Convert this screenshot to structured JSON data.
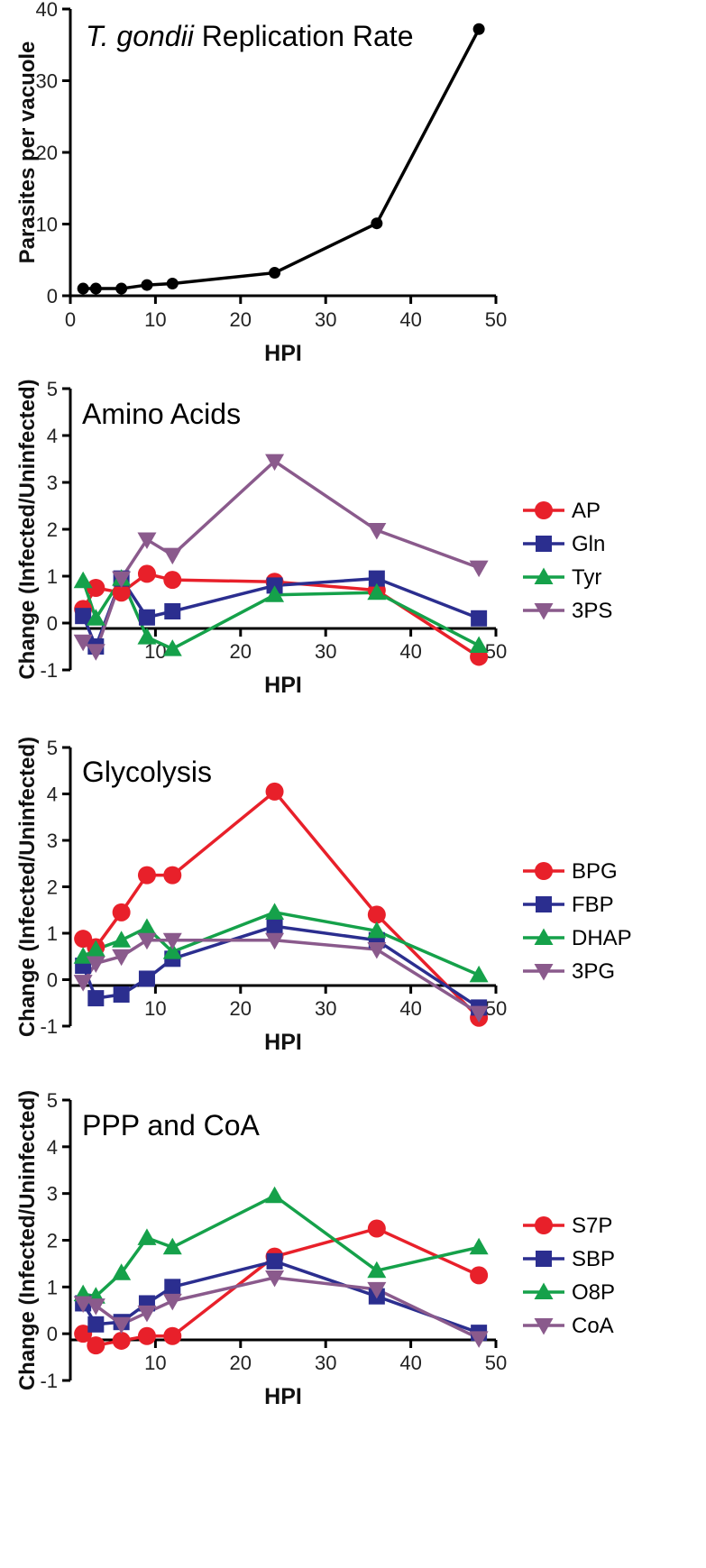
{
  "chart_data": [
    {
      "type": "line",
      "title_italic": "T. gondii",
      "title_rest": " Replication Rate",
      "xlabel": "HPI",
      "ylabel": "Parasites per vacuole",
      "xlim": [
        0,
        50
      ],
      "ylim": [
        0,
        40
      ],
      "xticks": [
        0,
        10,
        20,
        30,
        40,
        50
      ],
      "yticks": [
        0,
        10,
        20,
        30,
        40
      ],
      "series": [
        {
          "name": "Parasites",
          "color": "#000000",
          "marker": "circle",
          "x": [
            1.5,
            3,
            6,
            9,
            12,
            24,
            36,
            48
          ],
          "y": [
            1,
            1,
            1,
            1.5,
            1.7,
            3.2,
            10.1,
            37.2
          ]
        }
      ]
    },
    {
      "type": "line",
      "title": "Amino Acids",
      "xlabel": "HPI",
      "ylabel": "Change (Infected/Uninfected)",
      "xlim": [
        0,
        50
      ],
      "ylim": [
        -1,
        5
      ],
      "xticks": [
        10,
        20,
        30,
        40,
        50
      ],
      "yticks": [
        -1,
        0,
        1,
        2,
        3,
        4,
        5
      ],
      "series": [
        {
          "name": "AP",
          "color": "#e8202a",
          "marker": "circle",
          "x": [
            1.5,
            3,
            6,
            9,
            12,
            24,
            36,
            48
          ],
          "y": [
            0.3,
            0.75,
            0.65,
            1.05,
            0.92,
            0.88,
            0.7,
            -0.72
          ]
        },
        {
          "name": "Gln",
          "color": "#2b2e8f",
          "marker": "square",
          "x": [
            1.5,
            3,
            6,
            9,
            12,
            24,
            36,
            48
          ],
          "y": [
            0.15,
            -0.5,
            0.95,
            0.12,
            0.25,
            0.8,
            0.95,
            0.1
          ]
        },
        {
          "name": "Tyr",
          "color": "#15a14a",
          "marker": "triangle-up",
          "x": [
            1.5,
            3,
            6,
            9,
            12,
            24,
            36,
            48
          ],
          "y": [
            0.9,
            0.1,
            0.95,
            -0.3,
            -0.55,
            0.6,
            0.65,
            -0.48
          ]
        },
        {
          "name": "3PS",
          "color": "#8a5a8c",
          "marker": "triangle-down",
          "x": [
            1.5,
            3,
            6,
            9,
            12,
            24,
            36,
            48
          ],
          "y": [
            -0.4,
            -0.6,
            0.95,
            1.78,
            1.45,
            3.45,
            1.98,
            1.18
          ]
        }
      ]
    },
    {
      "type": "line",
      "title": "Glycolysis",
      "xlabel": "HPI",
      "ylabel": "Change (Infected/Uninfected)",
      "xlim": [
        0,
        50
      ],
      "ylim": [
        -1,
        5
      ],
      "xticks": [
        10,
        20,
        30,
        40,
        50
      ],
      "yticks": [
        -1,
        0,
        1,
        2,
        3,
        4,
        5
      ],
      "series": [
        {
          "name": "BPG",
          "color": "#e8202a",
          "marker": "circle",
          "x": [
            1.5,
            3,
            6,
            9,
            12,
            24,
            36,
            48
          ],
          "y": [
            0.88,
            0.7,
            1.45,
            2.25,
            2.25,
            4.05,
            1.4,
            -0.82
          ]
        },
        {
          "name": "FBP",
          "color": "#2b2e8f",
          "marker": "square",
          "x": [
            1.5,
            3,
            6,
            9,
            12,
            24,
            36,
            48
          ],
          "y": [
            0.3,
            -0.4,
            -0.32,
            0.02,
            0.45,
            1.15,
            0.85,
            -0.6
          ]
        },
        {
          "name": "DHAP",
          "color": "#15a14a",
          "marker": "triangle-up",
          "x": [
            1.5,
            3,
            6,
            9,
            12,
            24,
            36,
            48
          ],
          "y": [
            0.5,
            0.65,
            0.85,
            1.12,
            0.6,
            1.45,
            1.05,
            0.1
          ]
        },
        {
          "name": "3PG",
          "color": "#8a5a8c",
          "marker": "triangle-down",
          "x": [
            1.5,
            3,
            6,
            9,
            12,
            24,
            36,
            48
          ],
          "y": [
            -0.05,
            0.35,
            0.5,
            0.85,
            0.85,
            0.85,
            0.65,
            -0.72
          ]
        }
      ]
    },
    {
      "type": "line",
      "title": "PPP and CoA",
      "xlabel": "HPI",
      "ylabel": "Change (Infected/Uninfected)",
      "xlim": [
        0,
        50
      ],
      "ylim": [
        -1,
        5
      ],
      "xticks": [
        10,
        20,
        30,
        40,
        50
      ],
      "yticks": [
        -1,
        0,
        1,
        2,
        3,
        4,
        5
      ],
      "series": [
        {
          "name": "S7P",
          "color": "#e8202a",
          "marker": "circle",
          "x": [
            1.5,
            3,
            6,
            9,
            12,
            24,
            36,
            48
          ],
          "y": [
            0,
            -0.25,
            -0.15,
            -0.05,
            -0.05,
            1.65,
            2.25,
            1.25
          ]
        },
        {
          "name": "SBP",
          "color": "#2b2e8f",
          "marker": "square",
          "x": [
            1.5,
            3,
            6,
            9,
            12,
            24,
            36,
            48
          ],
          "y": [
            0.65,
            0.2,
            0.25,
            0.65,
            1.0,
            1.55,
            0.8,
            0.02
          ]
        },
        {
          "name": "O8P",
          "color": "#15a14a",
          "marker": "triangle-up",
          "x": [
            1.5,
            3,
            6,
            9,
            12,
            24,
            36,
            48
          ],
          "y": [
            0.85,
            0.8,
            1.3,
            2.05,
            1.85,
            2.95,
            1.35,
            1.85
          ]
        },
        {
          "name": "CoA",
          "color": "#8a5a8c",
          "marker": "triangle-down",
          "x": [
            1.5,
            3,
            6,
            9,
            12,
            24,
            36,
            48
          ],
          "y": [
            0.65,
            0.6,
            0.2,
            0.45,
            0.7,
            1.2,
            0.95,
            -0.1
          ]
        }
      ]
    }
  ]
}
